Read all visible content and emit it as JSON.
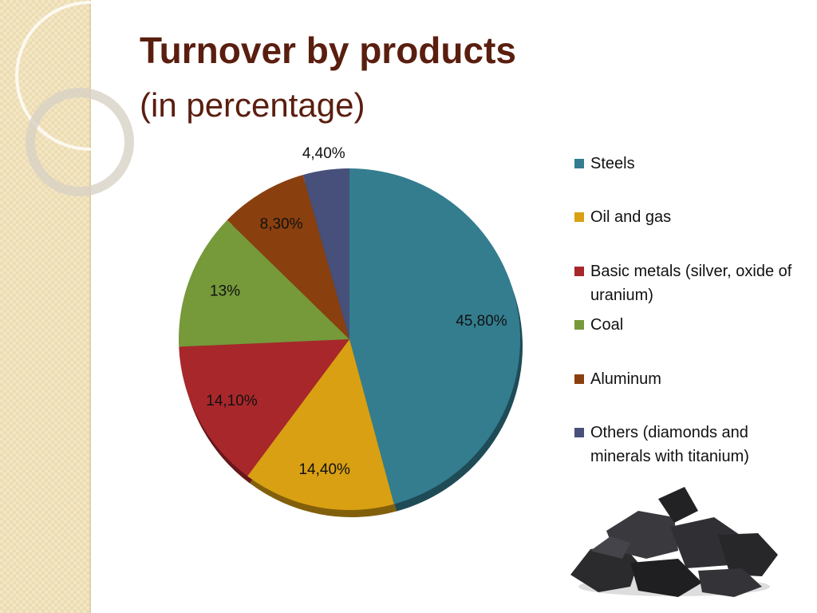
{
  "chart_data": {
    "type": "pie",
    "title": "Turnover by products",
    "subtitle": "(in percentage)",
    "categories": [
      "Steels",
      "Oil and gas",
      "Basic metals (silver, oxide of uranium)",
      "Coal",
      "Aluminum",
      "Others (diamonds and minerals with titanium)"
    ],
    "values": [
      45.8,
      14.4,
      14.1,
      13,
      8.3,
      4.4
    ],
    "value_labels": [
      "45,80%",
      "14,40%",
      "14,10%",
      "13%",
      "8,30%",
      "4,40%"
    ],
    "colors": [
      "#337d8f",
      "#d9a013",
      "#a8272b",
      "#76993a",
      "#8a3f0e",
      "#46507a"
    ],
    "legend": "right"
  }
}
